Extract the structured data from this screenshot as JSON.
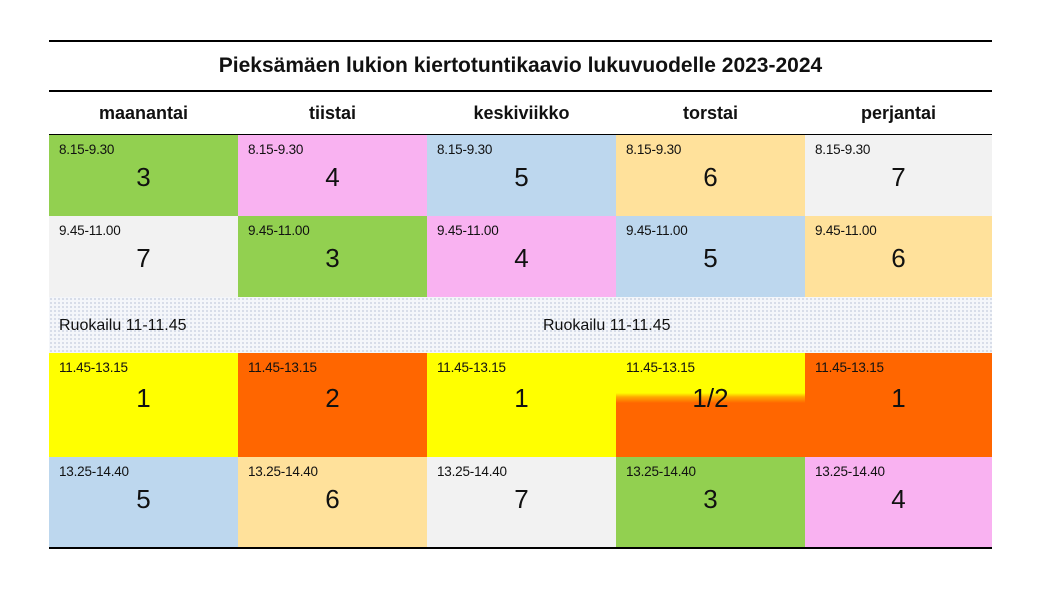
{
  "title": "Pieksämäen lukion kiertotuntikaavio lukuvuodelle 2023-2024",
  "days": [
    "maanantai",
    "tiistai",
    "keskiviikko",
    "torstai",
    "perjantai"
  ],
  "colors": {
    "green": "#92d050",
    "pink": "#f9b2f1",
    "lightblue": "#bdd7ee",
    "peach": "#ffe19b",
    "lightgray": "#f2f2f2",
    "yellow": "#ffff00",
    "orange": "#ff6600"
  },
  "lunch": {
    "left_label": "Ruokailu 11-11.45",
    "center_label": "Ruokailu 11-11.45"
  },
  "rows": [
    {
      "cells": [
        {
          "time": "8.15-9.30",
          "num": "3",
          "color": "#92d050"
        },
        {
          "time": "8.15-9.30",
          "num": "4",
          "color": "#f9b2f1"
        },
        {
          "time": "8.15-9.30",
          "num": "5",
          "color": "#bdd7ee"
        },
        {
          "time": "8.15-9.30",
          "num": "6",
          "color": "#ffe19b"
        },
        {
          "time": "8.15-9.30",
          "num": "7",
          "color": "#f2f2f2"
        }
      ]
    },
    {
      "cells": [
        {
          "time": "9.45-11.00",
          "num": "7",
          "color": "#f2f2f2"
        },
        {
          "time": "9.45-11.00",
          "num": "3",
          "color": "#92d050"
        },
        {
          "time": "9.45-11.00",
          "num": "4",
          "color": "#f9b2f1"
        },
        {
          "time": "9.45-11.00",
          "num": "5",
          "color": "#bdd7ee"
        },
        {
          "time": "9.45-11.00",
          "num": "6",
          "color": "#ffe19b"
        }
      ]
    },
    {
      "cells": [
        {
          "time": "11.45-13.15",
          "num": "1",
          "color": "#ffff00"
        },
        {
          "time": "11.45-13.15",
          "num": "2",
          "color": "#ff6600"
        },
        {
          "time": "11.45-13.15",
          "num": "1",
          "color": "#ffff00"
        },
        {
          "time": "11.45-13.15",
          "num": "1/2",
          "color": "split"
        },
        {
          "time": "11.45-13.15",
          "num": "1",
          "color": "#ff6600"
        }
      ]
    },
    {
      "cells": [
        {
          "time": "13.25-14.40",
          "num": "5",
          "color": "#bdd7ee"
        },
        {
          "time": "13.25-14.40",
          "num": "6",
          "color": "#ffe19b"
        },
        {
          "time": "13.25-14.40",
          "num": "7",
          "color": "#f2f2f2"
        },
        {
          "time": "13.25-14.40",
          "num": "3",
          "color": "#92d050"
        },
        {
          "time": "13.25-14.40",
          "num": "4",
          "color": "#f9b2f1"
        }
      ]
    }
  ]
}
